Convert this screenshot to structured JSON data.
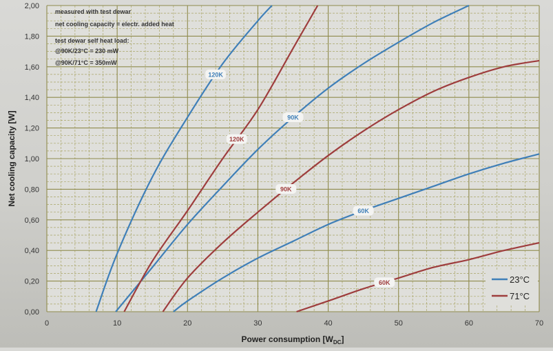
{
  "chart_data": {
    "type": "line",
    "xlabel": "Power consumption  [W",
    "xlabel_sub": "DC",
    "xlabel_end": "]",
    "ylabel": "Net cooling capacity  [W]",
    "xlim": [
      0,
      70
    ],
    "ylim": [
      0,
      2.0
    ],
    "x_ticks": [
      0,
      10,
      20,
      30,
      40,
      50,
      60,
      70
    ],
    "x_tick_labels": [
      "0",
      "10",
      "20",
      "30",
      "40",
      "50",
      "60",
      "70"
    ],
    "y_ticks": [
      0,
      0.2,
      0.4,
      0.6,
      0.8,
      1.0,
      1.2,
      1.4,
      1.6,
      1.8,
      2.0
    ],
    "y_tick_labels": [
      "0,00",
      "0,20",
      "0,40",
      "0,60",
      "0,80",
      "1,00",
      "1,20",
      "1,40",
      "1,60",
      "1,80",
      "2,00"
    ],
    "grid": true,
    "legend_position": "bottom-right",
    "legend": [
      {
        "label": "23°C",
        "color": "#3f7fb8"
      },
      {
        "label": "71°C",
        "color": "#9e3d3d"
      }
    ],
    "annotations": [
      "measured with test dewar",
      "net cooling capacity = electr. added heat",
      "test dewar self heat load:",
      "@90K/23°C = 230 mW",
      "@90K/71°C = 350mW"
    ],
    "series": [
      {
        "name": "120K",
        "group": "23°C",
        "color": "#3f7fb8",
        "x": [
          7.0,
          10,
          15,
          20,
          25,
          30,
          32
        ],
        "y": [
          0,
          0.38,
          0.88,
          1.27,
          1.62,
          1.9,
          2.0
        ],
        "label_at": 24
      },
      {
        "name": "90K",
        "group": "23°C",
        "color": "#3f7fb8",
        "x": [
          9.8,
          15,
          20,
          25,
          30,
          35,
          40,
          45,
          50,
          55,
          60
        ],
        "y": [
          0,
          0.29,
          0.57,
          0.82,
          1.06,
          1.27,
          1.46,
          1.62,
          1.76,
          1.89,
          2.0
        ],
        "label_at": 35
      },
      {
        "name": "60K",
        "group": "23°C",
        "color": "#3f7fb8",
        "x": [
          18,
          20,
          25,
          30,
          35,
          40,
          45,
          50,
          55,
          60,
          65,
          70
        ],
        "y": [
          0,
          0.07,
          0.22,
          0.35,
          0.46,
          0.57,
          0.66,
          0.74,
          0.82,
          0.9,
          0.97,
          1.03
        ],
        "label_at": 45
      },
      {
        "name": "120K",
        "group": "71°C",
        "color": "#9e3d3d",
        "x": [
          11,
          15,
          20,
          25,
          30,
          35,
          38.5
        ],
        "y": [
          0,
          0.33,
          0.66,
          1.0,
          1.32,
          1.72,
          2.0
        ],
        "label_at": 27
      },
      {
        "name": "90K",
        "group": "71°C",
        "color": "#9e3d3d",
        "x": [
          16.5,
          20,
          25,
          30,
          35,
          40,
          45,
          50,
          55,
          60,
          65,
          70
        ],
        "y": [
          0,
          0.22,
          0.45,
          0.65,
          0.84,
          1.02,
          1.18,
          1.32,
          1.44,
          1.53,
          1.6,
          1.64
        ],
        "label_at": 34
      },
      {
        "name": "60K",
        "group": "71°C",
        "color": "#9e3d3d",
        "x": [
          35.5,
          40,
          45,
          50,
          55,
          60,
          65,
          70
        ],
        "y": [
          0,
          0.07,
          0.15,
          0.22,
          0.29,
          0.34,
          0.4,
          0.45
        ],
        "label_at": 48
      }
    ]
  }
}
